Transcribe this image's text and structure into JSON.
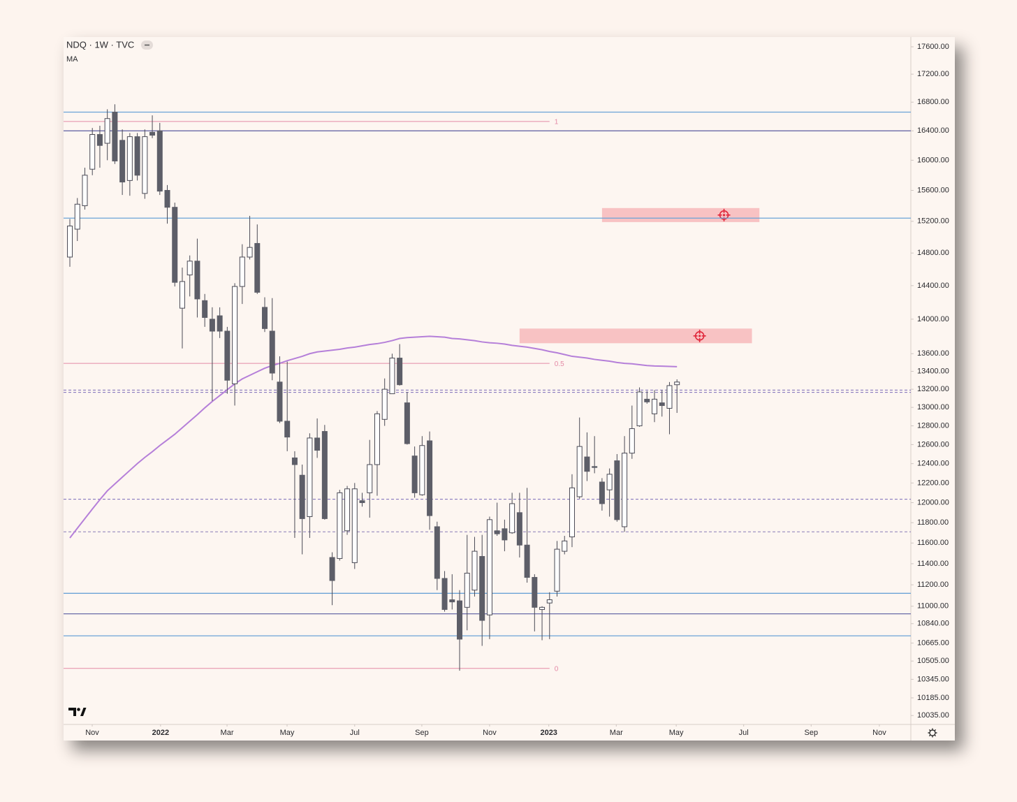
{
  "chart_data": {
    "type": "candlestick",
    "title": "NDQ · 1W · TVC",
    "categories": [
      null,
      null,
      null,
      null,
      null,
      null,
      null,
      null,
      null,
      null,
      null,
      null,
      null,
      null,
      null,
      null,
      null,
      null,
      null,
      null,
      null,
      null,
      null,
      null,
      null,
      null,
      null,
      null,
      null,
      null,
      null,
      null,
      null,
      null,
      null,
      null,
      null,
      null,
      null,
      null,
      null,
      null,
      null,
      null,
      null,
      null,
      null,
      null,
      null,
      null,
      null,
      null,
      null,
      null,
      null,
      null,
      null,
      null,
      null,
      null,
      null,
      null,
      null,
      null,
      null,
      null,
      null,
      null,
      null,
      null,
      null,
      null,
      null,
      null,
      null,
      null,
      null,
      null,
      null,
      null,
      null,
      null
    ],
    "open": [
      14750,
      15100,
      15400,
      15880,
      16350,
      16230,
      16660,
      16270,
      15730,
      16320,
      15560,
      16380,
      16400,
      15600,
      15380,
      14130,
      14530,
      14700,
      14220,
      14000,
      14040,
      13860,
      13260,
      14390,
      14750,
      14920,
      14140,
      13860,
      13280,
      12850,
      12460,
      12280,
      11860,
      12670,
      12740,
      11460,
      11450,
      11720,
      11410,
      12020,
      12100,
      12390,
      12870,
      13150,
      13550,
      13050,
      12480,
      12080,
      12640,
      11760,
      11260,
      11060,
      11050,
      10990,
      11150,
      11470,
      10920,
      11720,
      11740,
      11700,
      11900,
      11580,
      11270,
      10970,
      11030,
      11140,
      11520,
      11660,
      12060,
      12470,
      12370,
      12210,
      12130,
      12430,
      11760,
      12510,
      12800,
      13090,
      12930,
      13050,
      12990,
      13250
    ],
    "high": [
      15230,
      15500,
      15900,
      16440,
      16470,
      16700,
      16770,
      16420,
      16370,
      16370,
      16420,
      16615,
      16510,
      15670,
      15440,
      14620,
      14770,
      14980,
      14300,
      14140,
      14140,
      13910,
      14430,
      14910,
      15270,
      15160,
      14260,
      14250,
      13570,
      13510,
      12530,
      12390,
      12720,
      12880,
      12810,
      11510,
      12130,
      12170,
      12200,
      12100,
      12650,
      12960,
      13320,
      13600,
      13710,
      13170,
      12580,
      12690,
      12740,
      11810,
      11330,
      11300,
      11150,
      11680,
      11660,
      11680,
      11860,
      12000,
      11830,
      12100,
      12100,
      12150,
      11300,
      11000,
      11130,
      11620,
      11670,
      12290,
      12890,
      12730,
      12690,
      12250,
      12350,
      12500,
      12690,
      13020,
      13220,
      13180,
      13190,
      13190,
      13280,
      13310
    ],
    "low": [
      14630,
      14950,
      15350,
      15800,
      15900,
      16000,
      15950,
      15540,
      15530,
      15730,
      15490,
      16300,
      15540,
      15170,
      14390,
      13660,
      14270,
      14020,
      13910,
      13070,
      13780,
      13150,
      13020,
      14180,
      14720,
      14300,
      13850,
      13300,
      12830,
      12530,
      11650,
      11490,
      11650,
      12460,
      11830,
      11010,
      11430,
      11680,
      11350,
      11960,
      11850,
      12070,
      12800,
      13150,
      13240,
      12600,
      12050,
      12070,
      11730,
      11150,
      10950,
      10970,
      10420,
      10780,
      11090,
      10640,
      10700,
      11670,
      11520,
      11690,
      11460,
      11220,
      10770,
      10690,
      10700,
      11090,
      11490,
      11560,
      12040,
      12220,
      12300,
      11920,
      11860,
      11810,
      11710,
      12450,
      12790,
      13040,
      12840,
      12900,
      12710,
      12940
    ],
    "close": [
      15140,
      15420,
      15800,
      16350,
      16200,
      16570,
      15990,
      15710,
      16320,
      15800,
      16320,
      16340,
      15590,
      15380,
      14440,
      14450,
      14700,
      14240,
      14020,
      13860,
      13860,
      13300,
      14390,
      14750,
      14870,
      14320,
      13890,
      13380,
      12850,
      12680,
      12390,
      11840,
      12670,
      12540,
      11840,
      11240,
      12100,
      12140,
      12140,
      12000,
      12390,
      12930,
      13200,
      13550,
      13250,
      12610,
      12100,
      12590,
      11870,
      11260,
      10970,
      11040,
      10700,
      11310,
      11520,
      10870,
      11830,
      11690,
      11630,
      11990,
      11580,
      11270,
      10990,
      10990,
      11060,
      11540,
      11620,
      12150,
      12580,
      12320,
      12360,
      11990,
      12290,
      11830,
      12510,
      12770,
      13170,
      13060,
      13090,
      13020,
      13240,
      13280
    ],
    "up_color": "#ffffff",
    "down_color": "#5d5e68",
    "wick_color": "#4a4a55",
    "series": [
      {
        "name": "MA",
        "color": "#b57fd9",
        "values": [
          11650,
          11745,
          11840,
          11936,
          12030,
          12120,
          12190,
          12260,
          12330,
          12400,
          12465,
          12525,
          12590,
          12650,
          12710,
          12780,
          12850,
          12920,
          12995,
          13065,
          13130,
          13195,
          13260,
          13315,
          13355,
          13395,
          13435,
          13465,
          13490,
          13520,
          13545,
          13570,
          13600,
          13620,
          13630,
          13640,
          13650,
          13665,
          13675,
          13690,
          13705,
          13715,
          13730,
          13750,
          13775,
          13785,
          13790,
          13795,
          13800,
          13795,
          13790,
          13775,
          13770,
          13760,
          13750,
          13735,
          13725,
          13720,
          13710,
          13695,
          13685,
          13675,
          13660,
          13645,
          13625,
          13610,
          13590,
          13570,
          13560,
          13550,
          13535,
          13525,
          13515,
          13500,
          13490,
          13485,
          13475,
          13465,
          13460,
          13458,
          13455,
          13452
        ]
      }
    ],
    "levels": [
      {
        "value": 16660,
        "color": "#6aa3d6",
        "dashed": false
      },
      {
        "value": 16400,
        "color": "#6a6aa8",
        "dashed": false
      },
      {
        "value": 15240,
        "color": "#6aa3d6",
        "dashed": false
      },
      {
        "value": 13190,
        "color": "#7a6ab8",
        "dashed": true
      },
      {
        "value": 13165,
        "color": "#7a6ab8",
        "dashed": true
      },
      {
        "value": 12035,
        "color": "#7a6ab8",
        "dashed": true
      },
      {
        "value": 11710,
        "color": "#8a7ab8",
        "dashed": true
      },
      {
        "value": 11120,
        "color": "#6aa3d6",
        "dashed": false
      },
      {
        "value": 10930,
        "color": "#6a6aa8",
        "dashed": false
      },
      {
        "value": 10730,
        "color": "#6aa3d6",
        "dashed": false
      }
    ],
    "fib_color": "#e48aa6",
    "fib_end": 64.0,
    "fib_levels": [
      {
        "value": 16530,
        "label": "1"
      },
      {
        "value": 13490,
        "label": "0.5"
      },
      {
        "value": 10440,
        "label": "0"
      }
    ],
    "zone_color": "#f7b9bb",
    "zones": [
      {
        "x": [
          71.0,
          92.0
        ],
        "y": [
          15190,
          15370
        ]
      },
      {
        "x": [
          60.0,
          91.0
        ],
        "y": [
          13720,
          13890
        ]
      }
    ],
    "log_scale": true,
    "xlim": [
      -0.84,
      112.2
    ],
    "xticks": [
      {
        "value": 2.98,
        "label": "Nov"
      },
      {
        "value": 12.1,
        "label": "2022"
      },
      {
        "value": 20.97,
        "label": "Mar"
      },
      {
        "value": 28.98,
        "label": "May"
      },
      {
        "value": 38.0,
        "label": "Jul"
      },
      {
        "value": 46.96,
        "label": "Sep"
      },
      {
        "value": 56.0,
        "label": "Nov"
      },
      {
        "value": 63.9,
        "label": "2023"
      },
      {
        "value": 72.9,
        "label": "Mar"
      },
      {
        "value": 80.9,
        "label": "May"
      },
      {
        "value": 89.9,
        "label": "Jul"
      },
      {
        "value": 98.9,
        "label": "Sep"
      },
      {
        "value": 108.0,
        "label": "Nov"
      }
    ],
    "ylim": [
      9960,
      17745
    ],
    "yticks": [
      {
        "value": 17600,
        "label": "17600.00"
      },
      {
        "value": 17200,
        "label": "17200.00"
      },
      {
        "value": 16800,
        "label": "16800.00"
      },
      {
        "value": 16400,
        "label": "16400.00"
      },
      {
        "value": 16000,
        "label": "16000.00"
      },
      {
        "value": 15600,
        "label": "15600.00"
      },
      {
        "value": 15200,
        "label": "15200.00"
      },
      {
        "value": 14800,
        "label": "14800.00"
      },
      {
        "value": 14400,
        "label": "14400.00"
      },
      {
        "value": 14000,
        "label": "14000.00"
      },
      {
        "value": 13600,
        "label": "13600.00"
      },
      {
        "value": 13400,
        "label": "13400.00"
      },
      {
        "value": 13200,
        "label": "13200.00"
      },
      {
        "value": 13000,
        "label": "13000.00"
      },
      {
        "value": 12800,
        "label": "12800.00"
      },
      {
        "value": 12600,
        "label": "12600.00"
      },
      {
        "value": 12400,
        "label": "12400.00"
      },
      {
        "value": 12200,
        "label": "12200.00"
      },
      {
        "value": 12000,
        "label": "12000.00"
      },
      {
        "value": 11800,
        "label": "11800.00"
      },
      {
        "value": 11600,
        "label": "11600.00"
      },
      {
        "value": 11400,
        "label": "11400.00"
      },
      {
        "value": 11200,
        "label": "11200.00"
      },
      {
        "value": 11000,
        "label": "11000.00"
      },
      {
        "value": 10840,
        "label": "10840.00"
      },
      {
        "value": 10665,
        "label": "10665.00"
      },
      {
        "value": 10505,
        "label": "10505.00"
      },
      {
        "value": 10345,
        "label": "10345.00"
      },
      {
        "value": 10185,
        "label": "10185.00"
      },
      {
        "value": 10035,
        "label": "10035.00"
      }
    ],
    "grid": false
  }
}
